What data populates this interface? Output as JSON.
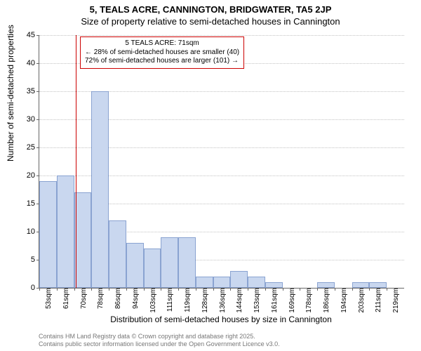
{
  "title": "5, TEALS ACRE, CANNINGTON, BRIDGWATER, TA5 2JP",
  "subtitle": "Size of property relative to semi-detached houses in Cannington",
  "y_axis": {
    "label": "Number of semi-detached properties",
    "min": 0,
    "max": 45,
    "ticks": [
      0,
      5,
      10,
      15,
      20,
      25,
      30,
      35,
      40,
      45
    ]
  },
  "x_axis": {
    "label": "Distribution of semi-detached houses by size in Cannington",
    "tick_labels": [
      "53sqm",
      "61sqm",
      "70sqm",
      "78sqm",
      "86sqm",
      "94sqm",
      "103sqm",
      "111sqm",
      "119sqm",
      "128sqm",
      "136sqm",
      "144sqm",
      "153sqm",
      "161sqm",
      "169sqm",
      "178sqm",
      "186sqm",
      "194sqm",
      "203sqm",
      "211sqm",
      "219sqm"
    ]
  },
  "bars": {
    "values": [
      19,
      20,
      17,
      35,
      12,
      8,
      7,
      9,
      9,
      2,
      2,
      3,
      2,
      1,
      0,
      0,
      1,
      0,
      1,
      1,
      0
    ],
    "fill_color": "#c9d7ef",
    "border_color": "#8aa3d1"
  },
  "marker": {
    "position_index": 2.1,
    "color": "#cc0000"
  },
  "annotation": {
    "title": "5 TEALS ACRE: 71sqm",
    "line1": "← 28% of semi-detached houses are smaller (40)",
    "line2": "72% of semi-detached houses are larger (101) →",
    "border_color": "#cc0000"
  },
  "footer": {
    "line1": "Contains HM Land Registry data © Crown copyright and database right 2025.",
    "line2": "Contains public sector information licensed under the Open Government Licence v3.0."
  },
  "style": {
    "background_color": "#ffffff",
    "grid_color": "#888888",
    "axis_color": "#666666",
    "title_fontsize": 13,
    "label_fontsize": 12,
    "tick_fontsize": 11,
    "footer_color": "#777777"
  }
}
